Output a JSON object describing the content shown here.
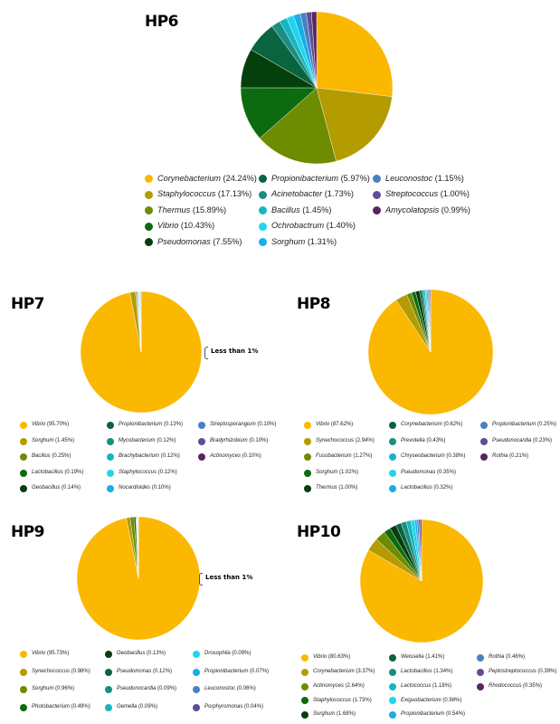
{
  "chart_data": [
    {
      "type": "pie",
      "title": "HP6",
      "labels": [
        "Corynebacterium",
        "Staphylococcus",
        "Thermus",
        "Vibrio",
        "Pseudomonas",
        "Propionibacterium",
        "Acinetobacter",
        "Bacillus",
        "Ochrobactrum",
        "Sorghum",
        "Leuconostoc",
        "Streptococcus",
        "Amycolatopsis"
      ],
      "value_labels": [
        "(24.24%)",
        "(17.13%)",
        "(15.89%)",
        "(10.43%)",
        "(7.55%)",
        "(5.97%)",
        "(1.73%)",
        "(1.45%)",
        "(1.40%)",
        "(1.31%)",
        "(1.15%)",
        "(1.00%)",
        "(0.99%)"
      ],
      "values": [
        24.24,
        17.13,
        15.89,
        10.43,
        7.55,
        5.97,
        1.73,
        1.45,
        1.4,
        1.31,
        1.15,
        1.0,
        0.99
      ],
      "colors": [
        "#fbb800",
        "#b49b00",
        "#6e8c00",
        "#0c6b10",
        "#053f0c",
        "#0a6440",
        "#1a8e80",
        "#16b6c1",
        "#1fd6ee",
        "#18aee6",
        "#4a80c0",
        "#604c98",
        "#5a2460"
      ],
      "legend_columns": 3,
      "annotation": ""
    },
    {
      "type": "pie",
      "title": "HP7",
      "labels": [
        "Vibrio",
        "Sorghum",
        "Bacillus",
        "Lactobacillus",
        "Geobacillus",
        "Propionibacterium",
        "Mycobacterium",
        "Brachybacterium",
        "Staphylococcus",
        "Nocardioides",
        "Streptosporangium",
        "Bradyrhizobium",
        "Actinomyces"
      ],
      "value_labels": [
        "(95.70%)",
        "(1.45%)",
        "(0.25%)",
        "(0.19%)",
        "(0.14%)",
        "(0.13%)",
        "(0.12%)",
        "(0.12%)",
        "(0.12%)",
        "(0.10%)",
        "(0.10%)",
        "(0.10%)",
        "(0.10%)"
      ],
      "values": [
        95.7,
        1.45,
        0.25,
        0.19,
        0.14,
        0.13,
        0.12,
        0.12,
        0.12,
        0.1,
        0.1,
        0.1,
        0.1
      ],
      "colors": [
        "#fbb800",
        "#b49b00",
        "#6e8c00",
        "#0c6b10",
        "#053f0c",
        "#0a6440",
        "#1a8e80",
        "#16b6c1",
        "#1fd6ee",
        "#18aee6",
        "#4a80c0",
        "#604c98",
        "#5a2460"
      ],
      "legend_columns": 3,
      "annotation": "Less than 1%"
    },
    {
      "type": "pie",
      "title": "HP8",
      "labels": [
        "Vibrio",
        "Synechococcus",
        "Fusobacterium",
        "Sorghum",
        "Thermus",
        "Corynebacterium",
        "Prevotella",
        "Chryseobacterium",
        "Pseudomonas",
        "Lactobacillus",
        "Propionibacterium",
        "Pseudonocardia",
        "Rothia"
      ],
      "value_labels": [
        "(87.62%)",
        "(2.94%)",
        "(1.27%)",
        "(1.02%)",
        "(1.00%)",
        "(0.62%)",
        "(0.43%)",
        "(0.38%)",
        "(0.35%)",
        "(0.32%)",
        "(0.25%)",
        "(0.23%)",
        "(0.21%)"
      ],
      "values": [
        87.62,
        2.94,
        1.27,
        1.02,
        1.0,
        0.62,
        0.43,
        0.38,
        0.35,
        0.32,
        0.25,
        0.23,
        0.21
      ],
      "colors": [
        "#fbb800",
        "#b49b00",
        "#6e8c00",
        "#0c6b10",
        "#053f0c",
        "#0a6440",
        "#1a8e80",
        "#16b6c1",
        "#1fd6ee",
        "#18aee6",
        "#4a80c0",
        "#604c98",
        "#5a2460"
      ],
      "legend_columns": 3,
      "annotation": ""
    },
    {
      "type": "pie",
      "title": "HP9",
      "labels": [
        "Vibrio",
        "Synechococcus",
        "Sorghum",
        "Photobacterium",
        "Geobacillus",
        "Pseudomonas",
        "Pseudonocardia",
        "Gemella",
        "Drosophila",
        "Propionibacterium",
        "Leuconostoc",
        "Porphyromonas"
      ],
      "value_labels": [
        "(95.73%)",
        "(0.98%)",
        "(0.96%)",
        "(0.49%)",
        "(0.13%)",
        "(0.12%)",
        "(0.09%)",
        "(0.09%)",
        "(0.09%)",
        "(0.07%)",
        "(0.06%)",
        "(0.04%)"
      ],
      "values": [
        95.73,
        0.98,
        0.96,
        0.49,
        0.13,
        0.12,
        0.09,
        0.09,
        0.09,
        0.07,
        0.06,
        0.04
      ],
      "colors": [
        "#fbb800",
        "#b49b00",
        "#6e8c00",
        "#0c6b10",
        "#053f0c",
        "#0a6440",
        "#1a8e80",
        "#16b6c1",
        "#1fd6ee",
        "#18aee6",
        "#4a80c0",
        "#604c98"
      ],
      "legend_columns": 3,
      "annotation": "Less than 1%"
    },
    {
      "type": "pie",
      "title": "HP10",
      "labels": [
        "Vibrio",
        "Corynebacterium",
        "Actinomyces",
        "Staphylococcus",
        "Sorghum",
        "Weissella",
        "Lactobacillus",
        "Lactococcus",
        "Exiguobacterium",
        "Propionibacterium",
        "Rothia",
        "Peptostreptococcus",
        "Rhodococcus"
      ],
      "value_labels": [
        "(80.63%)",
        "(3.37%)",
        "(2.64%)",
        "(1.73%)",
        "(1.68%)",
        "(1.41%)",
        "(1.34%)",
        "(1.18%)",
        "(0.98%)",
        "(0.54%)",
        "(0.46%)",
        "(0.39%)",
        "(0.35%)"
      ],
      "values": [
        80.63,
        3.37,
        2.64,
        1.73,
        1.68,
        1.41,
        1.34,
        1.18,
        0.98,
        0.54,
        0.46,
        0.39,
        0.35
      ],
      "colors": [
        "#fbb800",
        "#b49b00",
        "#6e8c00",
        "#0c6b10",
        "#053f0c",
        "#0a6440",
        "#1a8e80",
        "#16b6c1",
        "#1fd6ee",
        "#18aee6",
        "#4a80c0",
        "#604c98",
        "#5a2460"
      ],
      "legend_columns": 3,
      "annotation": ""
    }
  ]
}
